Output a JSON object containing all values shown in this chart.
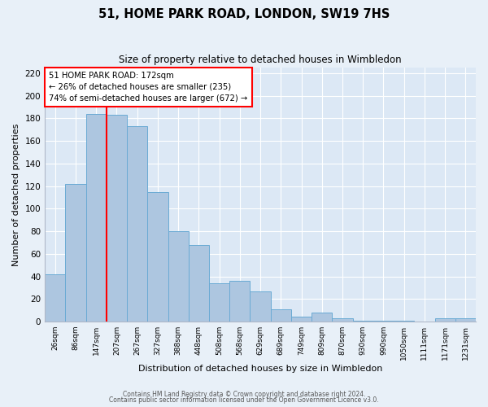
{
  "title": "51, HOME PARK ROAD, LONDON, SW19 7HS",
  "subtitle": "Size of property relative to detached houses in Wimbledon",
  "xlabel": "Distribution of detached houses by size in Wimbledon",
  "ylabel": "Number of detached properties",
  "bar_labels": [
    "26sqm",
    "86sqm",
    "147sqm",
    "207sqm",
    "267sqm",
    "327sqm",
    "388sqm",
    "448sqm",
    "508sqm",
    "568sqm",
    "629sqm",
    "689sqm",
    "749sqm",
    "809sqm",
    "870sqm",
    "930sqm",
    "990sqm",
    "1050sqm",
    "1111sqm",
    "1171sqm",
    "1231sqm"
  ],
  "bar_heights": [
    42,
    122,
    184,
    183,
    173,
    115,
    80,
    68,
    34,
    36,
    27,
    11,
    4,
    8,
    3,
    1,
    1,
    1,
    0,
    3,
    3
  ],
  "bar_color": "#adc6e0",
  "bar_edge_color": "#6aaad4",
  "background_color": "#dce8f5",
  "fig_background_color": "#e8f0f8",
  "grid_color": "#ffffff",
  "ylim": [
    0,
    225
  ],
  "yticks": [
    0,
    20,
    40,
    60,
    80,
    100,
    120,
    140,
    160,
    180,
    200,
    220
  ],
  "red_line_index": 2,
  "annotation_title": "51 HOME PARK ROAD: 172sqm",
  "annotation_line1": "← 26% of detached houses are smaller (235)",
  "annotation_line2": "74% of semi-detached houses are larger (672) →",
  "footer1": "Contains HM Land Registry data © Crown copyright and database right 2024.",
  "footer2": "Contains public sector information licensed under the Open Government Licence v3.0."
}
